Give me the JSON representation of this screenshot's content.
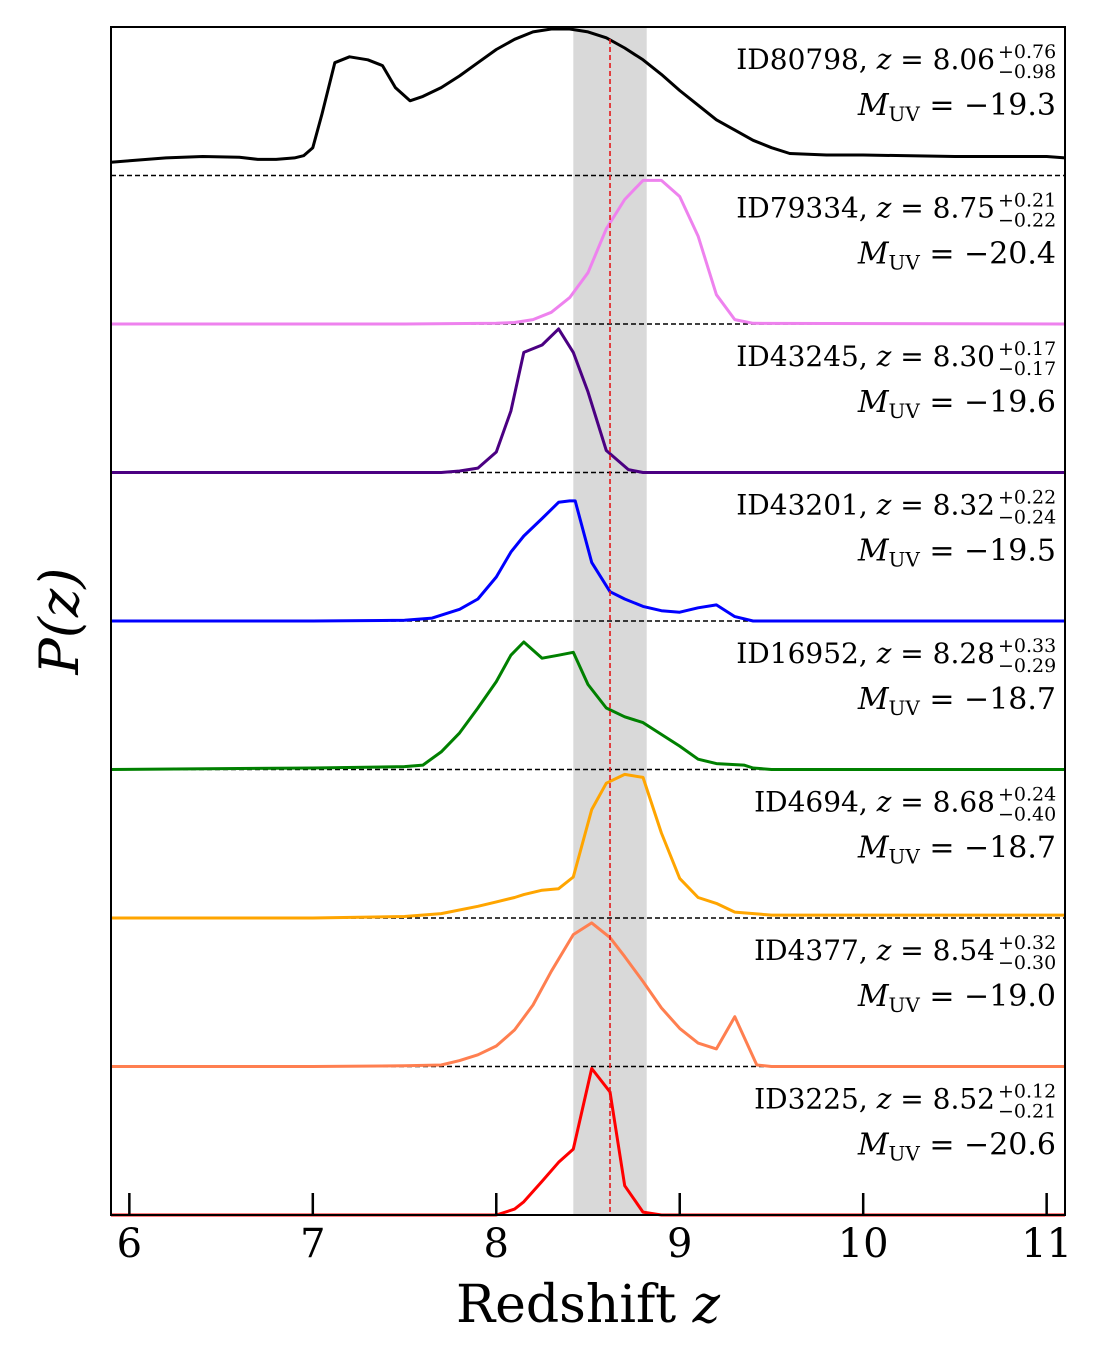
{
  "chart_data": {
    "type": "line",
    "title": "",
    "xlabel": "Redshift",
    "xlabel_var": "z",
    "ylabel": "P(z)",
    "xlim": [
      5.9,
      11.1
    ],
    "xticks": [
      6,
      7,
      8,
      9,
      10,
      11
    ],
    "shaded_band": {
      "from": 8.42,
      "to": 8.82,
      "color": "#d9d9d9"
    },
    "reference_line": {
      "x": 8.62,
      "color": "#e41a1c",
      "style": "dashed"
    },
    "label_prefix": {
      "z": "z = ",
      "muv": "M",
      "muv_sub": "UV",
      "muv_eq": " = "
    },
    "series": [
      {
        "name": "ID80798",
        "z": "8.06",
        "err_up": "+0.76",
        "err_dn": "−0.98",
        "muv": "−19.3",
        "color": "#000000",
        "x": [
          5.9,
          6.0,
          6.2,
          6.4,
          6.6,
          6.7,
          6.8,
          6.9,
          6.95,
          7.0,
          7.05,
          7.12,
          7.2,
          7.3,
          7.38,
          7.45,
          7.53,
          7.6,
          7.7,
          7.8,
          7.9,
          8.0,
          8.1,
          8.2,
          8.3,
          8.4,
          8.5,
          8.6,
          8.7,
          8.8,
          8.9,
          9.0,
          9.1,
          9.2,
          9.3,
          9.4,
          9.5,
          9.6,
          9.8,
          10.0,
          10.5,
          11.0,
          11.1
        ],
        "y": [
          0.09,
          0.1,
          0.12,
          0.13,
          0.125,
          0.11,
          0.11,
          0.12,
          0.135,
          0.19,
          0.42,
          0.77,
          0.81,
          0.79,
          0.75,
          0.6,
          0.51,
          0.54,
          0.6,
          0.68,
          0.77,
          0.86,
          0.93,
          0.98,
          1.0,
          1.0,
          0.98,
          0.94,
          0.87,
          0.79,
          0.69,
          0.58,
          0.48,
          0.38,
          0.31,
          0.24,
          0.19,
          0.15,
          0.14,
          0.14,
          0.13,
          0.13,
          0.12
        ]
      },
      {
        "name": "ID79334",
        "z": "8.75",
        "err_up": "+0.21",
        "err_dn": "−0.22",
        "muv": "−20.4",
        "color": "#ee82ee",
        "x": [
          5.9,
          7.5,
          8.0,
          8.1,
          8.2,
          8.3,
          8.4,
          8.5,
          8.6,
          8.7,
          8.8,
          8.9,
          9.0,
          9.1,
          9.2,
          9.3,
          9.4,
          11.1
        ],
        "y": [
          0,
          0,
          0.005,
          0.01,
          0.03,
          0.08,
          0.18,
          0.35,
          0.65,
          0.85,
          0.98,
          0.98,
          0.87,
          0.6,
          0.2,
          0.03,
          0.005,
          0
        ]
      },
      {
        "name": "ID43245",
        "z": "8.30",
        "err_up": "+0.17",
        "err_dn": "−0.17",
        "muv": "−19.6",
        "color": "#4b0082",
        "x": [
          5.9,
          7.6,
          7.7,
          7.8,
          7.9,
          8.0,
          8.08,
          8.15,
          8.25,
          8.34,
          8.42,
          8.5,
          8.6,
          8.72,
          8.8,
          9.0,
          11.1
        ],
        "y": [
          0,
          0,
          0,
          0.01,
          0.03,
          0.14,
          0.42,
          0.82,
          0.87,
          0.98,
          0.82,
          0.55,
          0.15,
          0.02,
          0,
          0,
          0
        ]
      },
      {
        "name": "ID43201",
        "z": "8.32",
        "err_up": "+0.22",
        "err_dn": "−0.24",
        "muv": "−19.5",
        "color": "#0000ff",
        "x": [
          5.9,
          7.0,
          7.5,
          7.65,
          7.8,
          7.9,
          8.0,
          8.08,
          8.15,
          8.25,
          8.34,
          8.4,
          8.43,
          8.52,
          8.62,
          8.7,
          8.8,
          8.9,
          9.0,
          9.1,
          9.2,
          9.3,
          9.4,
          11.1
        ],
        "y": [
          0,
          0,
          0.005,
          0.02,
          0.08,
          0.15,
          0.3,
          0.47,
          0.58,
          0.7,
          0.81,
          0.82,
          0.82,
          0.4,
          0.2,
          0.15,
          0.1,
          0.07,
          0.06,
          0.09,
          0.11,
          0.03,
          0,
          0
        ]
      },
      {
        "name": "ID16952",
        "z": "8.28",
        "err_up": "+0.33",
        "err_dn": "−0.29",
        "muv": "−18.7",
        "color": "#008000",
        "x": [
          5.9,
          7.0,
          7.5,
          7.6,
          7.7,
          7.8,
          7.9,
          8.0,
          8.08,
          8.15,
          8.25,
          8.34,
          8.42,
          8.5,
          8.6,
          8.7,
          8.8,
          9.0,
          9.1,
          9.2,
          9.35,
          9.4,
          9.5,
          11.1
        ],
        "y": [
          0,
          0.01,
          0.02,
          0.03,
          0.12,
          0.25,
          0.42,
          0.6,
          0.78,
          0.87,
          0.76,
          0.78,
          0.8,
          0.58,
          0.42,
          0.36,
          0.32,
          0.16,
          0.07,
          0.04,
          0.03,
          0.01,
          0,
          0
        ]
      },
      {
        "name": "ID4694",
        "z": "8.68",
        "err_up": "+0.24",
        "err_dn": "−0.40",
        "muv": "−18.7",
        "color": "#ffa500",
        "x": [
          5.9,
          7.0,
          7.5,
          7.7,
          7.9,
          8.0,
          8.1,
          8.15,
          8.25,
          8.34,
          8.42,
          8.52,
          8.6,
          8.7,
          8.8,
          8.9,
          9.0,
          9.1,
          9.2,
          9.3,
          9.5,
          10.0,
          10.5,
          11.0,
          11.1
        ],
        "y": [
          0,
          0,
          0.01,
          0.03,
          0.08,
          0.11,
          0.14,
          0.16,
          0.19,
          0.2,
          0.28,
          0.74,
          0.92,
          0.98,
          0.96,
          0.58,
          0.27,
          0.14,
          0.1,
          0.04,
          0.02,
          0.02,
          0.02,
          0.02,
          0.02
        ]
      },
      {
        "name": "ID4377",
        "z": "8.54",
        "err_up": "+0.32",
        "err_dn": "−0.30",
        "muv": "−19.0",
        "color": "#ff7f50",
        "x": [
          5.9,
          7.0,
          7.5,
          7.7,
          7.8,
          7.9,
          8.0,
          8.1,
          8.2,
          8.3,
          8.42,
          8.52,
          8.62,
          8.7,
          8.8,
          8.9,
          9.0,
          9.1,
          9.2,
          9.3,
          9.42,
          9.5,
          11.1
        ],
        "y": [
          0,
          0,
          0.005,
          0.01,
          0.04,
          0.08,
          0.14,
          0.25,
          0.42,
          0.65,
          0.9,
          0.98,
          0.88,
          0.75,
          0.58,
          0.4,
          0.26,
          0.16,
          0.12,
          0.34,
          0.01,
          0,
          0
        ]
      },
      {
        "name": "ID3225",
        "z": "8.52",
        "err_up": "+0.12",
        "err_dn": "−0.21",
        "muv": "−20.6",
        "color": "#ff0000",
        "x": [
          5.9,
          7.5,
          8.0,
          8.1,
          8.15,
          8.25,
          8.34,
          8.42,
          8.52,
          8.62,
          8.7,
          8.8,
          8.9,
          11.1
        ],
        "y": [
          0,
          0,
          0,
          0.04,
          0.09,
          0.23,
          0.36,
          0.45,
          1.0,
          0.84,
          0.2,
          0.02,
          0,
          0
        ]
      }
    ]
  }
}
